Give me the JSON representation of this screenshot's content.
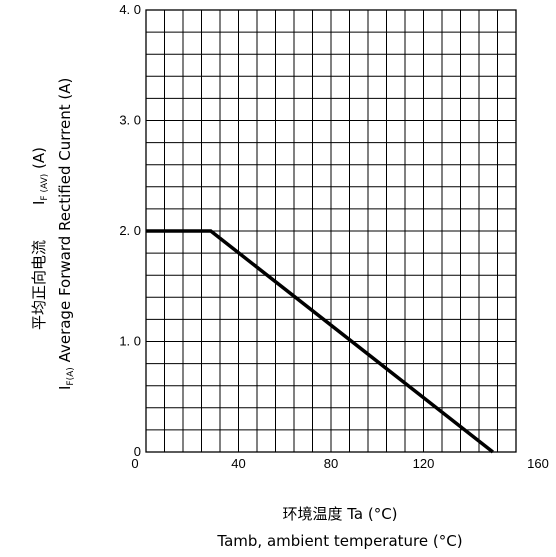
{
  "chart_data": {
    "type": "line",
    "x_label_cn": "环境温度  Ta (°C)",
    "x_label_en": "Tamb, ambient temperature (°C)",
    "y_label_cn": "平均正向电流",
    "y_label_en": "Average Forward Rectified Current (A)",
    "y_symbol_top": "I",
    "y_symbol_top_sub": "F (AV)",
    "y_symbol_top_unit": "(A)",
    "y_symbol_bottom": "I",
    "y_symbol_bottom_sub": "F(A)",
    "xlim": [
      0,
      160
    ],
    "ylim": [
      0,
      4.0
    ],
    "x_ticks": [
      0,
      40,
      80,
      120,
      160
    ],
    "x_tick_labels": [
      "0",
      "40",
      "80",
      "120",
      "160"
    ],
    "y_ticks": [
      0,
      1.0,
      2.0,
      3.0,
      4.0
    ],
    "y_tick_labels": [
      "0",
      "1. 0",
      "2. 0",
      "3. 0",
      "4. 0"
    ],
    "grid": true,
    "grid_x_step": 8,
    "grid_y_step": 0.2,
    "series": [
      {
        "color": "#000000",
        "x": [
          0,
          28,
          150
        ],
        "y": [
          2.0,
          2.0,
          0
        ]
      }
    ]
  }
}
